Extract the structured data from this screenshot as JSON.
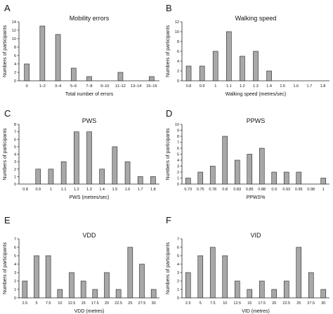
{
  "chart_data": [
    {
      "letter": "A",
      "type": "bar",
      "title": "Mobility errors",
      "xlabel": "Total number of errors",
      "ylabel": "Numbers of participants",
      "ylim": [
        0,
        14
      ],
      "yticks": [
        0,
        2,
        4,
        6,
        8,
        10,
        12,
        14
      ],
      "categories": [
        "0",
        "1–2",
        "3–4",
        "5–6",
        "7–8",
        "9–10",
        "11–12",
        "13–14",
        "15–16"
      ],
      "values": [
        4,
        13,
        11,
        3,
        1,
        0,
        2,
        0,
        1
      ]
    },
    {
      "letter": "B",
      "type": "bar",
      "title": "Walking speed",
      "xlabel": "Walking speed (metres/sec)",
      "ylabel": "Numbers of participants",
      "ylim": [
        0,
        12
      ],
      "yticks": [
        0,
        2,
        4,
        6,
        8,
        10,
        12
      ],
      "categories": [
        "0.8",
        "0.9",
        "1",
        "1.1",
        "1.2",
        "1.3",
        "1.4",
        "1.5",
        "1.6",
        "1.7",
        "1.8"
      ],
      "values": [
        3,
        3,
        6,
        10,
        5,
        6,
        2,
        0,
        0,
        0,
        0
      ]
    },
    {
      "letter": "C",
      "type": "bar",
      "title": "PWS",
      "xlabel": "PWS (metres/sec)",
      "ylabel": "Numbers of participants",
      "ylim": [
        0,
        8
      ],
      "yticks": [
        0,
        1,
        2,
        3,
        4,
        5,
        6,
        7,
        8
      ],
      "categories": [
        "0.8",
        "0.9",
        "1",
        "1.1",
        "1.2",
        "1.3",
        "1.4",
        "1.5",
        "1.6",
        "1.7",
        "1.8"
      ],
      "values": [
        0,
        2,
        2,
        3,
        7,
        7,
        2,
        5,
        3,
        1,
        1
      ]
    },
    {
      "letter": "D",
      "type": "bar",
      "title": "PPWS",
      "xlabel": "PPWS%",
      "ylabel": "Numbers of participants",
      "ylim": [
        0,
        10
      ],
      "yticks": [
        0,
        1,
        2,
        3,
        4,
        5,
        6,
        7,
        8,
        9,
        10
      ],
      "categories": [
        "0.73",
        "0.75",
        "0.78",
        "0.8",
        "0.83",
        "0.85",
        "0.88",
        "0.9",
        "0.93",
        "0.95",
        "0.98",
        "1"
      ],
      "values": [
        1,
        2,
        3,
        8,
        4,
        5,
        6,
        2,
        2,
        2,
        0,
        1
      ]
    },
    {
      "letter": "E",
      "type": "bar",
      "title": "VDD",
      "xlabel": "VDD (metres)",
      "ylabel": "Numbers of participants",
      "ylim": [
        0,
        7
      ],
      "yticks": [
        0,
        1,
        2,
        3,
        4,
        5,
        6,
        7
      ],
      "categories": [
        "2.5",
        "5",
        "7.5",
        "10",
        "12.5",
        "15",
        "17.5",
        "20",
        "22.5",
        "25",
        "27.5",
        "30"
      ],
      "values": [
        2,
        5,
        5,
        1,
        3,
        2,
        1,
        3,
        1,
        6,
        4,
        1
      ]
    },
    {
      "letter": "F",
      "type": "bar",
      "title": "VID",
      "xlabel": "VID (metres)",
      "ylabel": "Numbers of participants",
      "ylim": [
        0,
        7
      ],
      "yticks": [
        0,
        1,
        2,
        3,
        4,
        5,
        6,
        7
      ],
      "categories": [
        "2.5",
        "5",
        "7.5",
        "10",
        "12.5",
        "15",
        "17.5",
        "20",
        "22.5",
        "25",
        "27.5",
        "30"
      ],
      "values": [
        3,
        5,
        6,
        5,
        2,
        1,
        2,
        1,
        2,
        6,
        3,
        1
      ]
    }
  ],
  "colors": {
    "bar_fill": "#a8a8a8",
    "bar_stroke": "#222222",
    "axis": "#222222"
  }
}
